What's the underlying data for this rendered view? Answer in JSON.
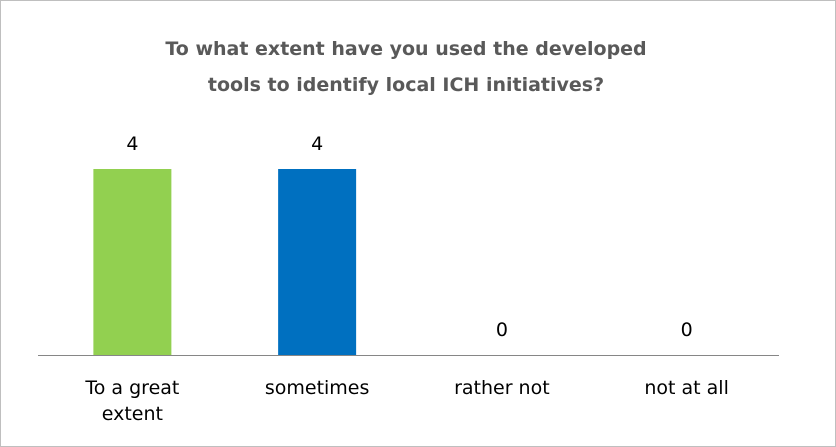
{
  "chart_data": {
    "type": "bar",
    "title": "To what extent have you used the developed tools to identify local ICH initiatives?",
    "categories": [
      "To a great extent",
      "sometimes",
      "rather not",
      "not at all"
    ],
    "values": [
      4,
      4,
      0,
      0
    ],
    "colors": [
      "#92d050",
      "#0070c0",
      "#0070c0",
      "#0070c0"
    ]
  }
}
